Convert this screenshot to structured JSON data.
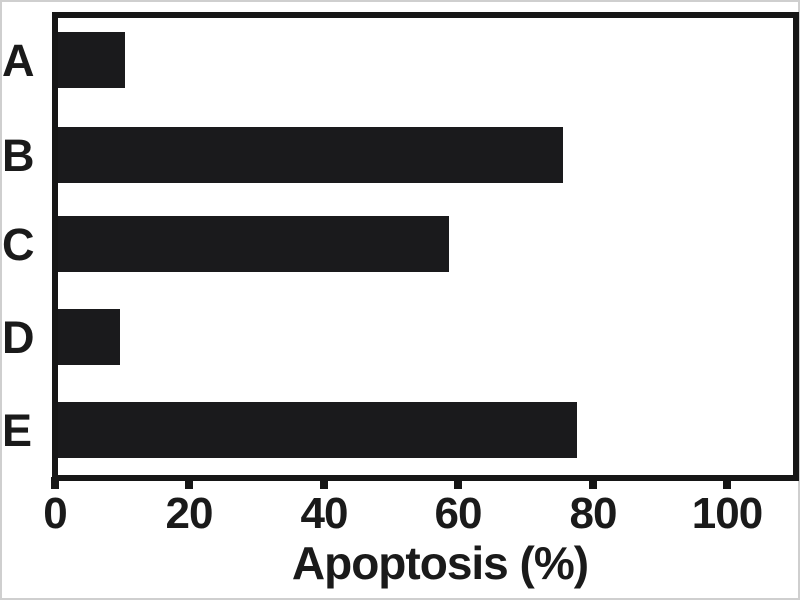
{
  "figure": {
    "background": "#ffffff",
    "edge_color": "#cfcfcf"
  },
  "chart_data": {
    "type": "bar",
    "orientation": "horizontal",
    "title": "",
    "xlabel": "Apoptosis (%)",
    "ylabel": "",
    "categories": [
      "A",
      "B",
      "C",
      "D",
      "E"
    ],
    "values": [
      10.5,
      75.6,
      58.6,
      9.7,
      77.7
    ],
    "xticks": [
      0,
      20,
      40,
      60,
      80,
      100
    ],
    "xtick_labels": [
      "0",
      "20",
      "40",
      "60",
      "80",
      "100"
    ],
    "xlim": [
      0,
      110
    ],
    "grid": false,
    "legend": false,
    "bar_color": "#1a1a1c",
    "axis_color": "#161616",
    "text_color": "#1a1a1a"
  }
}
